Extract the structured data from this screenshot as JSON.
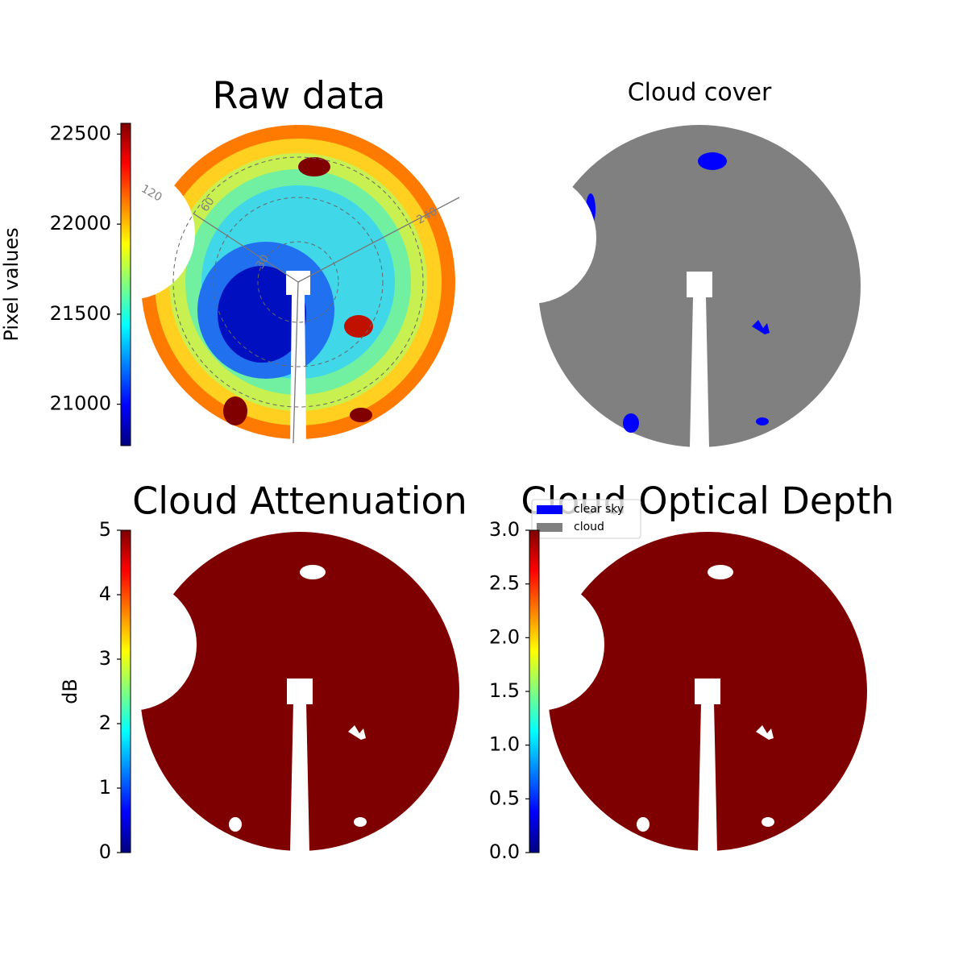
{
  "chart_data": [
    {
      "type": "image",
      "title": "Raw data",
      "colorbar": {
        "label": "Pixel values",
        "lim": [
          20770,
          22560
        ],
        "ticks": [
          21000,
          21500,
          22000,
          22500
        ]
      },
      "annotations": [
        "120",
        "60",
        "30",
        "240"
      ]
    },
    {
      "type": "image",
      "title": "Cloud cover",
      "legend": [
        {
          "name": "clear sky",
          "color": "#0000ff"
        },
        {
          "name": "cloud",
          "color": "#808080"
        }
      ]
    },
    {
      "type": "image",
      "title": "Cloud Attenuation",
      "colorbar": {
        "label": "dB",
        "lim": [
          0,
          5
        ],
        "ticks": [
          0,
          1,
          2,
          3,
          4,
          5
        ]
      }
    },
    {
      "type": "image",
      "title": "Cloud Optical Depth",
      "colorbar": {
        "lim": [
          0,
          3
        ],
        "ticks": [
          {
            "value": 0,
            "label": "0.0"
          },
          {
            "value": 0.5,
            "label": "0.5"
          },
          {
            "value": 1,
            "label": "1.0"
          },
          {
            "value": 1.5,
            "label": "1.5"
          },
          {
            "value": 2,
            "label": "2.0"
          },
          {
            "value": 2.5,
            "label": "2.5"
          },
          {
            "value": 3,
            "label": "3.0"
          }
        ]
      }
    }
  ]
}
